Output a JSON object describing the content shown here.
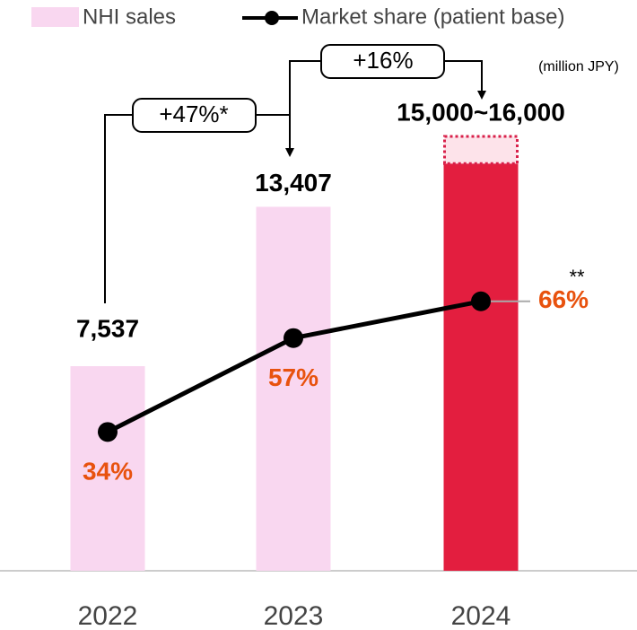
{
  "chart_data": {
    "type": "combo",
    "unit_note": "(million JPY)",
    "categories": [
      "2022",
      "2023",
      "2024"
    ],
    "ylim": [
      0,
      20000
    ],
    "y2lim": [
      0,
      133
    ],
    "series": [
      {
        "name": "NHI sales",
        "type": "bar",
        "color": "#f9d7f0",
        "colors": [
          "#f9d7f0",
          "#f9d7f0",
          "#e31e3f"
        ],
        "values": [
          7537,
          13407,
          15000
        ],
        "upper": [
          null,
          null,
          16000
        ],
        "upper_color": "#fde3ea",
        "upper_border": "#d8204a",
        "value_labels": [
          "7,537",
          "13,407",
          "15,000~16,000"
        ]
      },
      {
        "name": "Market share (patient base)",
        "type": "line",
        "axis": "y2",
        "color": "#000000",
        "label_color": "#e8520e",
        "values": [
          34,
          57,
          66
        ],
        "value_labels": [
          "34%",
          "57%",
          "66%"
        ]
      }
    ],
    "annotations": [
      "+47%*",
      "+16%",
      "**"
    ]
  }
}
